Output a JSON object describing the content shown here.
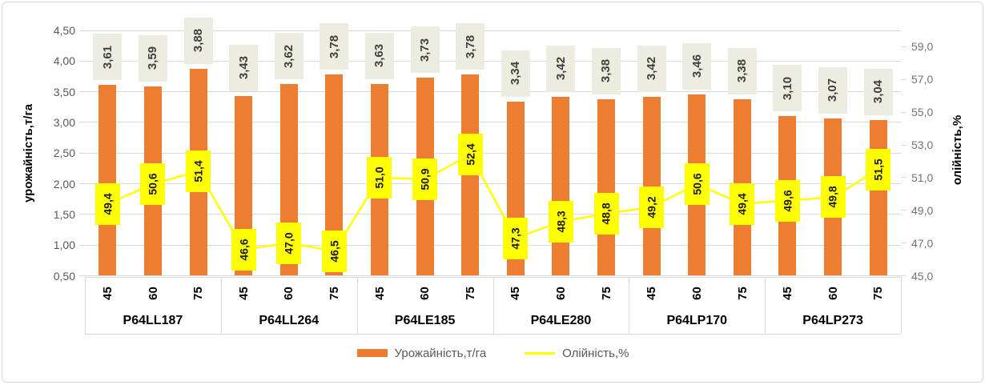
{
  "chart_data": {
    "type": "combo",
    "x_axis": {
      "groups": [
        "P64LL187",
        "P64LL264",
        "P64LE185",
        "P64LE280",
        "P64LP170",
        "P64LP273"
      ],
      "sub_categories": [
        "45",
        "60",
        "75"
      ]
    },
    "series": [
      {
        "name": "Урожайність,т/га",
        "chart_type": "bar",
        "axis": "left",
        "color": "#ED7D31",
        "values": [
          3.61,
          3.59,
          3.88,
          3.43,
          3.62,
          3.78,
          3.63,
          3.73,
          3.78,
          3.34,
          3.42,
          3.38,
          3.42,
          3.46,
          3.38,
          3.1,
          3.07,
          3.04
        ],
        "labels": [
          "3,61",
          "3,59",
          "3,88",
          "3,43",
          "3,62",
          "3,78",
          "3,63",
          "3,73",
          "3,78",
          "3,34",
          "3,42",
          "3,38",
          "3,42",
          "3,46",
          "3,38",
          "3,10",
          "3,07",
          "3,04"
        ]
      },
      {
        "name": "Олійність,%",
        "chart_type": "line",
        "axis": "right",
        "color": "#FFFF00",
        "values": [
          49.4,
          50.6,
          51.4,
          46.6,
          47.0,
          46.5,
          51.0,
          50.9,
          52.4,
          47.3,
          48.3,
          48.8,
          49.2,
          50.6,
          49.4,
          49.6,
          49.8,
          51.5
        ],
        "labels": [
          "49,4",
          "50,6",
          "51,4",
          "46,6",
          "47,0",
          "46,5",
          "51,0",
          "50,9",
          "52,4",
          "47,3",
          "48,3",
          "48,8",
          "49,2",
          "50,6",
          "49,4",
          "49,6",
          "49,8",
          "51,5"
        ]
      }
    ],
    "left_axis": {
      "title": "урожайність,т/га",
      "min": 0.5,
      "max": 4.5,
      "step": 0.5,
      "tick_values": [
        0.5,
        1.0,
        1.5,
        2.0,
        2.5,
        3.0,
        3.5,
        4.0,
        4.5
      ],
      "tick_labels": [
        "0,50",
        "1,00",
        "1,50",
        "2,00",
        "2,50",
        "3,00",
        "3,50",
        "4,00",
        "4,50"
      ]
    },
    "right_axis": {
      "title": "олійність,%",
      "min": 45,
      "max": 60,
      "label_step": 2,
      "tick_values": [
        45,
        47,
        49,
        51,
        53,
        55,
        57,
        59
      ],
      "tick_labels": [
        "45,0",
        "47,0",
        "49,0",
        "51,0",
        "53,0",
        "55,0",
        "57,0",
        "59,0"
      ]
    },
    "legend": [
      "Урожайність,т/га",
      "Олійність,%"
    ],
    "grid": true,
    "legend_position": "bottom"
  },
  "colors": {
    "bar": "#ED7D31",
    "line": "#FFFF00",
    "bar_label_bg": "#ECEDE0",
    "line_label_bg": "#FFFF00",
    "gridline": "#D9D9D9",
    "tick_text": "#595959",
    "category_text": "#000000"
  }
}
